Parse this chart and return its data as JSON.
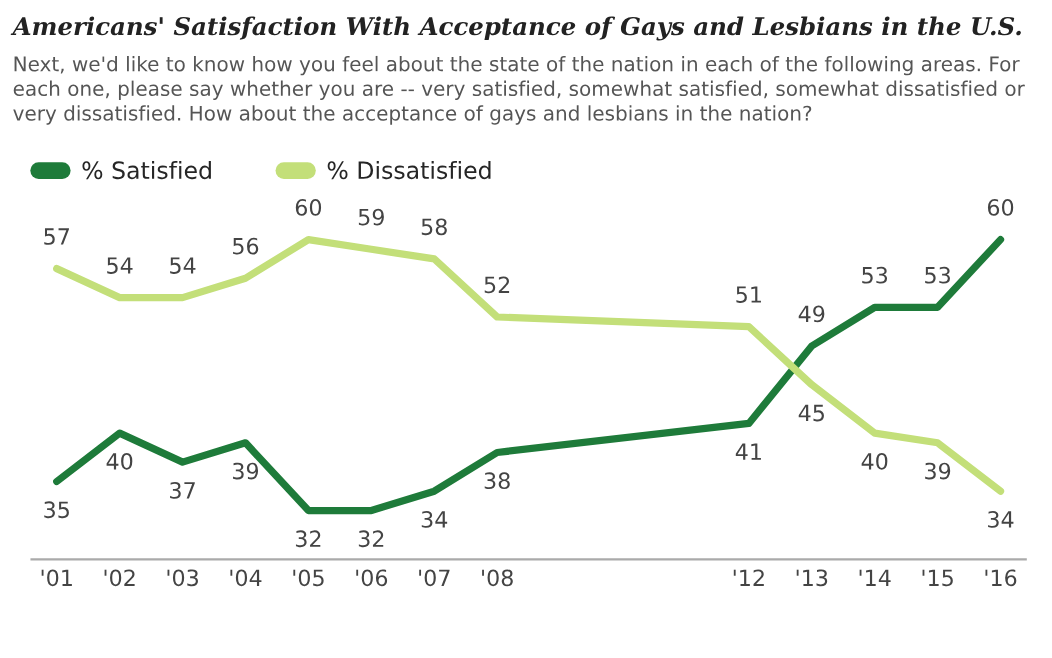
{
  "chart_data": {
    "type": "line",
    "title": "Americans' Satisfaction With Acceptance of Gays and Lesbians in the U.S.",
    "subtitle": "Next, we'd like to know how you feel about the state of the nation in each of the following areas. For each one, please say whether you are -- very satisfied, somewhat satisfied, somewhat dissatisfied or very dissatisfied. How about the acceptance of gays and lesbians in the nation?",
    "x": [
      2001,
      2002,
      2003,
      2004,
      2005,
      2006,
      2007,
      2008,
      2012,
      2013,
      2014,
      2015,
      2016
    ],
    "series": [
      {
        "name": "% Satisfied",
        "color": "#1e7b3a",
        "values": [
          35,
          40,
          37,
          39,
          32,
          32,
          34,
          38,
          41,
          49,
          53,
          53,
          60
        ]
      },
      {
        "name": "% Dissatisfied",
        "color": "#c3df79",
        "values": [
          57,
          54,
          54,
          56,
          60,
          59,
          58,
          52,
          51,
          45,
          40,
          39,
          34
        ]
      }
    ],
    "xlim": [
      2000.6,
      2016.4
    ],
    "xticks": [
      {
        "value": 2001,
        "label": "'01"
      },
      {
        "value": 2002,
        "label": "'02"
      },
      {
        "value": 2003,
        "label": "'03"
      },
      {
        "value": 2004,
        "label": "'04"
      },
      {
        "value": 2005,
        "label": "'05"
      },
      {
        "value": 2006,
        "label": "'06"
      },
      {
        "value": 2007,
        "label": "'07"
      },
      {
        "value": 2008,
        "label": "'08"
      },
      {
        "value": 2012,
        "label": "'12"
      },
      {
        "value": 2013,
        "label": "'13"
      },
      {
        "value": 2014,
        "label": "'14"
      },
      {
        "value": 2015,
        "label": "'15"
      },
      {
        "value": 2016,
        "label": "'16"
      }
    ],
    "data_labels": true,
    "legend": "top left",
    "grid": false,
    "tick_labels": "x",
    "marker": "none",
    "line_style": "solid"
  }
}
